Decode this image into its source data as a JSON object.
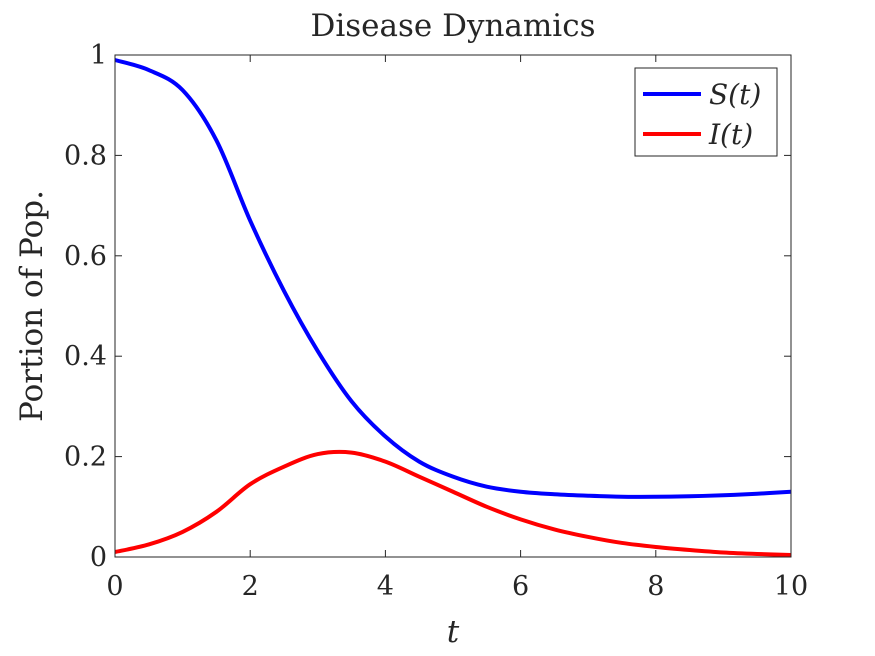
{
  "chart_data": {
    "type": "line",
    "title": "Disease Dynamics",
    "xlabel": "t",
    "ylabel": "Portion of Pop.",
    "xlim": [
      0,
      10
    ],
    "ylim": [
      0,
      1
    ],
    "xticks": [
      0,
      2,
      4,
      6,
      8,
      10
    ],
    "xtick_labels": [
      "0",
      "2",
      "4",
      "6",
      "8",
      "10"
    ],
    "yticks": [
      0,
      0.2,
      0.4,
      0.6,
      0.8,
      1
    ],
    "ytick_labels": [
      "0",
      "0.2",
      "0.4",
      "0.6",
      "0.8",
      "1"
    ],
    "grid": false,
    "legend_position": "top-right",
    "x": [
      0,
      0.5,
      1,
      1.5,
      2,
      2.5,
      3,
      3.5,
      4,
      4.5,
      5,
      5.5,
      6,
      6.5,
      7,
      7.5,
      8,
      8.5,
      9,
      9.5,
      10
    ],
    "series": [
      {
        "name": "S(t)",
        "color": "#0000ff",
        "values": [
          0.99,
          0.97,
          0.93,
          0.83,
          0.67,
          0.53,
          0.41,
          0.31,
          0.24,
          0.19,
          0.16,
          0.14,
          0.13,
          0.125,
          0.122,
          0.12,
          0.12,
          0.121,
          0.123,
          0.126,
          0.13
        ]
      },
      {
        "name": "I(t)",
        "color": "#ff0000",
        "values": [
          0.01,
          0.025,
          0.05,
          0.09,
          0.145,
          0.18,
          0.205,
          0.208,
          0.19,
          0.16,
          0.13,
          0.1,
          0.075,
          0.055,
          0.04,
          0.028,
          0.02,
          0.014,
          0.009,
          0.006,
          0.004
        ]
      }
    ]
  }
}
